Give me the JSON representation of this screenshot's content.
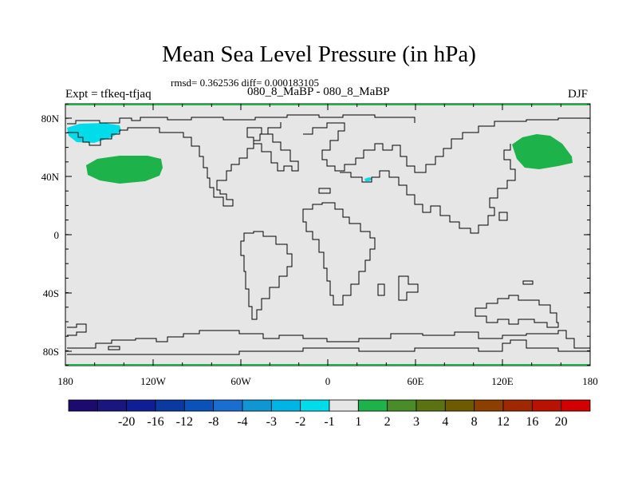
{
  "title": "Mean Sea Level Pressure (in hPa)",
  "stats_text": "rmsd= 0.362536 diff= 0.000183105",
  "experiment_label": "Expt = tfkeq-tfjaq",
  "period_label": "080_8_MaBP - 080_8_MaBP",
  "season_label": "DJF",
  "map": {
    "lon_ticks": [
      "180",
      "120W",
      "60W",
      "0",
      "60E",
      "120E",
      "180"
    ],
    "lat_ticks": [
      "80N",
      "40N",
      "0",
      "40S",
      "80S"
    ],
    "background_color": "#e6e6e6",
    "frame_top_bottom_color": "#1db34a",
    "coastline_color": "#000000"
  },
  "anomaly_regions": [
    {
      "name": "north-pacific-negative",
      "class": "-2 to -1",
      "color": "#00dcea"
    },
    {
      "name": "north-pacific-positive",
      "class": "1 to 2",
      "color": "#1db34a"
    },
    {
      "name": "northwest-pacific-positive",
      "class": "1 to 2",
      "color": "#1db34a"
    },
    {
      "name": "mediterranean-negative",
      "class": "-2 to -1",
      "color": "#00dcea"
    }
  ],
  "colorbar": {
    "colors": [
      "#1c0a6e",
      "#1a167e",
      "#101e96",
      "#0a3aa0",
      "#0a52ba",
      "#1a6ed2",
      "#1096d2",
      "#00b4e6",
      "#00dcea",
      "#e6e6e6",
      "#1db34a",
      "#4a8c28",
      "#5a7212",
      "#6e5a00",
      "#8c4000",
      "#a02800",
      "#b81200",
      "#d20000"
    ],
    "labels": [
      "-20",
      "-16",
      "-12",
      "-8",
      "-4",
      "-3",
      "-2",
      "-1",
      "1",
      "2",
      "3",
      "4",
      "8",
      "12",
      "16",
      "20"
    ]
  }
}
